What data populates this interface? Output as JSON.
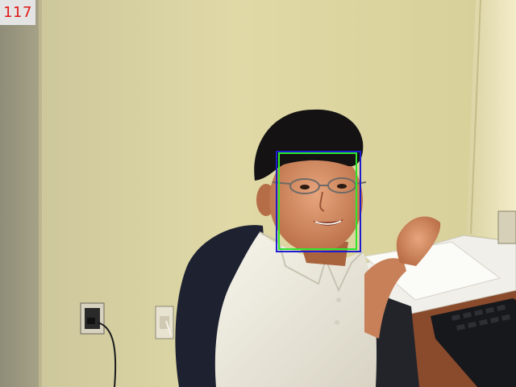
{
  "frame_counter": "117",
  "colors": {
    "counter_text": "#e01818",
    "counter_bg": "#e4e4e4",
    "detection_box_outer": "#1c1cd0",
    "detection_box_inner": "#2ee62e"
  },
  "detections": [
    {
      "label": "face",
      "box": "outer"
    },
    {
      "label": "face",
      "box": "inner"
    }
  ]
}
